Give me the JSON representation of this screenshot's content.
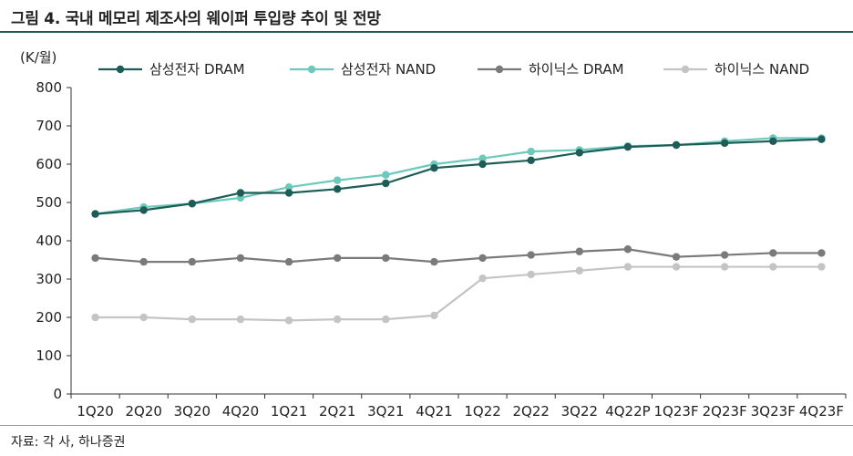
{
  "figure": {
    "title": "그림 4. 국내 메모리 제조사의 웨이퍼 투입량 추이 및 전망",
    "source": "자료: 각 사, 하나증권"
  },
  "chart_data": {
    "type": "line",
    "unit_label": "(K/월)",
    "categories": [
      "1Q20",
      "2Q20",
      "3Q20",
      "4Q20",
      "1Q21",
      "2Q21",
      "3Q21",
      "4Q21",
      "1Q22",
      "2Q22",
      "3Q22",
      "4Q22P",
      "1Q23F",
      "2Q23F",
      "3Q23F",
      "4Q23F"
    ],
    "ylim": [
      0,
      800
    ],
    "yticks": [
      0,
      100,
      200,
      300,
      400,
      500,
      600,
      700,
      800
    ],
    "grid": false,
    "legend_position": "top",
    "series": [
      {
        "name": "삼성전자 DRAM",
        "color": "#1e5d57",
        "values": [
          470,
          480,
          497,
          525,
          525,
          535,
          550,
          590,
          600,
          610,
          630,
          645,
          650,
          655,
          660,
          665
        ]
      },
      {
        "name": "삼성전자 NAND",
        "color": "#6cc9bc",
        "values": [
          470,
          488,
          497,
          512,
          540,
          558,
          572,
          600,
          615,
          633,
          637,
          647,
          650,
          660,
          668,
          668
        ]
      },
      {
        "name": "하이닉스 DRAM",
        "color": "#7a7a7a",
        "values": [
          355,
          345,
          345,
          355,
          345,
          355,
          355,
          345,
          355,
          363,
          372,
          378,
          358,
          363,
          368,
          368
        ]
      },
      {
        "name": "하이닉스 NAND",
        "color": "#c4c4c4",
        "values": [
          200,
          200,
          195,
          195,
          192,
          195,
          195,
          205,
          302,
          312,
          322,
          332,
          332,
          332,
          332,
          332
        ]
      }
    ]
  }
}
